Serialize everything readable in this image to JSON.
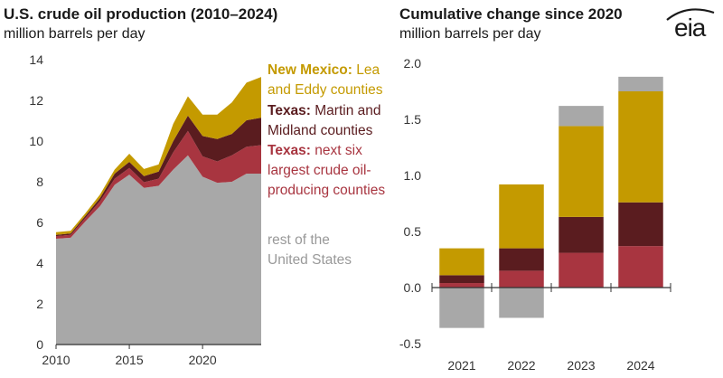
{
  "left_chart": {
    "title": "U.S. crude oil production (2010–2024)",
    "subtitle": "million barrels per day"
  },
  "right_chart": {
    "title": "Cumulative change since 2020",
    "subtitle": "million barrels per day"
  },
  "logo": "eia",
  "colors": {
    "new_mexico": "#c49a00",
    "texas_martin_midland": "#5a1c1f",
    "texas_next_six": "#a83540",
    "rest_of_us": "#a8a8a8"
  },
  "annotations": {
    "nm_bold": "New Mexico:",
    "nm_rest1": " Lea",
    "nm_line2": "and Eddy counties",
    "tx1_bold": "Texas:",
    "tx1_rest1": " Martin and",
    "tx1_line2": "Midland counties",
    "tx2_bold": "Texas:",
    "tx2_rest1": " next six",
    "tx2_line2": "largest crude oil-",
    "tx2_line3": "producing counties",
    "rest_line1": "rest of the",
    "rest_line2": "United States"
  },
  "chart_data": [
    {
      "type": "area",
      "stacked": true,
      "title": "U.S. crude oil production (2010–2024)",
      "ylabel": "million barrels per day",
      "ylim": [
        0,
        14
      ],
      "yticks": [
        "0",
        "2",
        "4",
        "6",
        "8",
        "10",
        "12",
        "14"
      ],
      "xticks": [
        "2010",
        "2015",
        "2020"
      ],
      "x": [
        2010,
        2011,
        2012,
        2013,
        2014,
        2015,
        2016,
        2017,
        2018,
        2019,
        2020,
        2021,
        2022,
        2023,
        2024
      ],
      "series": [
        {
          "name": "rest of the United States",
          "values": [
            5.2,
            5.25,
            6.05,
            6.8,
            7.85,
            8.35,
            7.7,
            7.8,
            8.6,
            9.3,
            8.25,
            7.95,
            8.0,
            8.4,
            8.4
          ]
        },
        {
          "name": "Texas: next six largest crude oil-producing counties",
          "values": [
            0.13,
            0.14,
            0.17,
            0.25,
            0.3,
            0.33,
            0.28,
            0.35,
            0.85,
            1.2,
            1.0,
            1.05,
            1.3,
            1.32,
            1.4
          ]
        },
        {
          "name": "Texas: Martin and Midland counties",
          "values": [
            0.06,
            0.07,
            0.1,
            0.15,
            0.25,
            0.3,
            0.3,
            0.35,
            0.55,
            0.75,
            1.0,
            1.1,
            1.05,
            1.3,
            1.35
          ]
        },
        {
          "name": "New Mexico: Lea and Eddy counties",
          "values": [
            0.13,
            0.13,
            0.13,
            0.17,
            0.2,
            0.4,
            0.35,
            0.35,
            0.85,
            0.95,
            1.05,
            1.2,
            1.55,
            1.85,
            2.0
          ]
        }
      ]
    },
    {
      "type": "bar",
      "stacked": true,
      "title": "Cumulative change since 2020",
      "ylabel": "million barrels per day",
      "ylim": [
        -0.5,
        2.0
      ],
      "yticks": [
        "-0.5",
        "0.0",
        "0.5",
        "1.0",
        "1.5",
        "2.0"
      ],
      "categories": [
        "2021",
        "2022",
        "2023",
        "2024"
      ],
      "series": [
        {
          "name": "Texas: next six largest crude oil-producing counties",
          "values": [
            0.04,
            0.15,
            0.31,
            0.37
          ]
        },
        {
          "name": "Texas: Martin and Midland counties",
          "values": [
            0.07,
            0.2,
            0.32,
            0.39
          ]
        },
        {
          "name": "New Mexico: Lea and Eddy counties",
          "values": [
            0.24,
            0.57,
            0.81,
            0.99
          ]
        },
        {
          "name": "rest of the United States",
          "values": [
            -0.36,
            -0.27,
            0.18,
            0.13
          ]
        }
      ]
    }
  ]
}
